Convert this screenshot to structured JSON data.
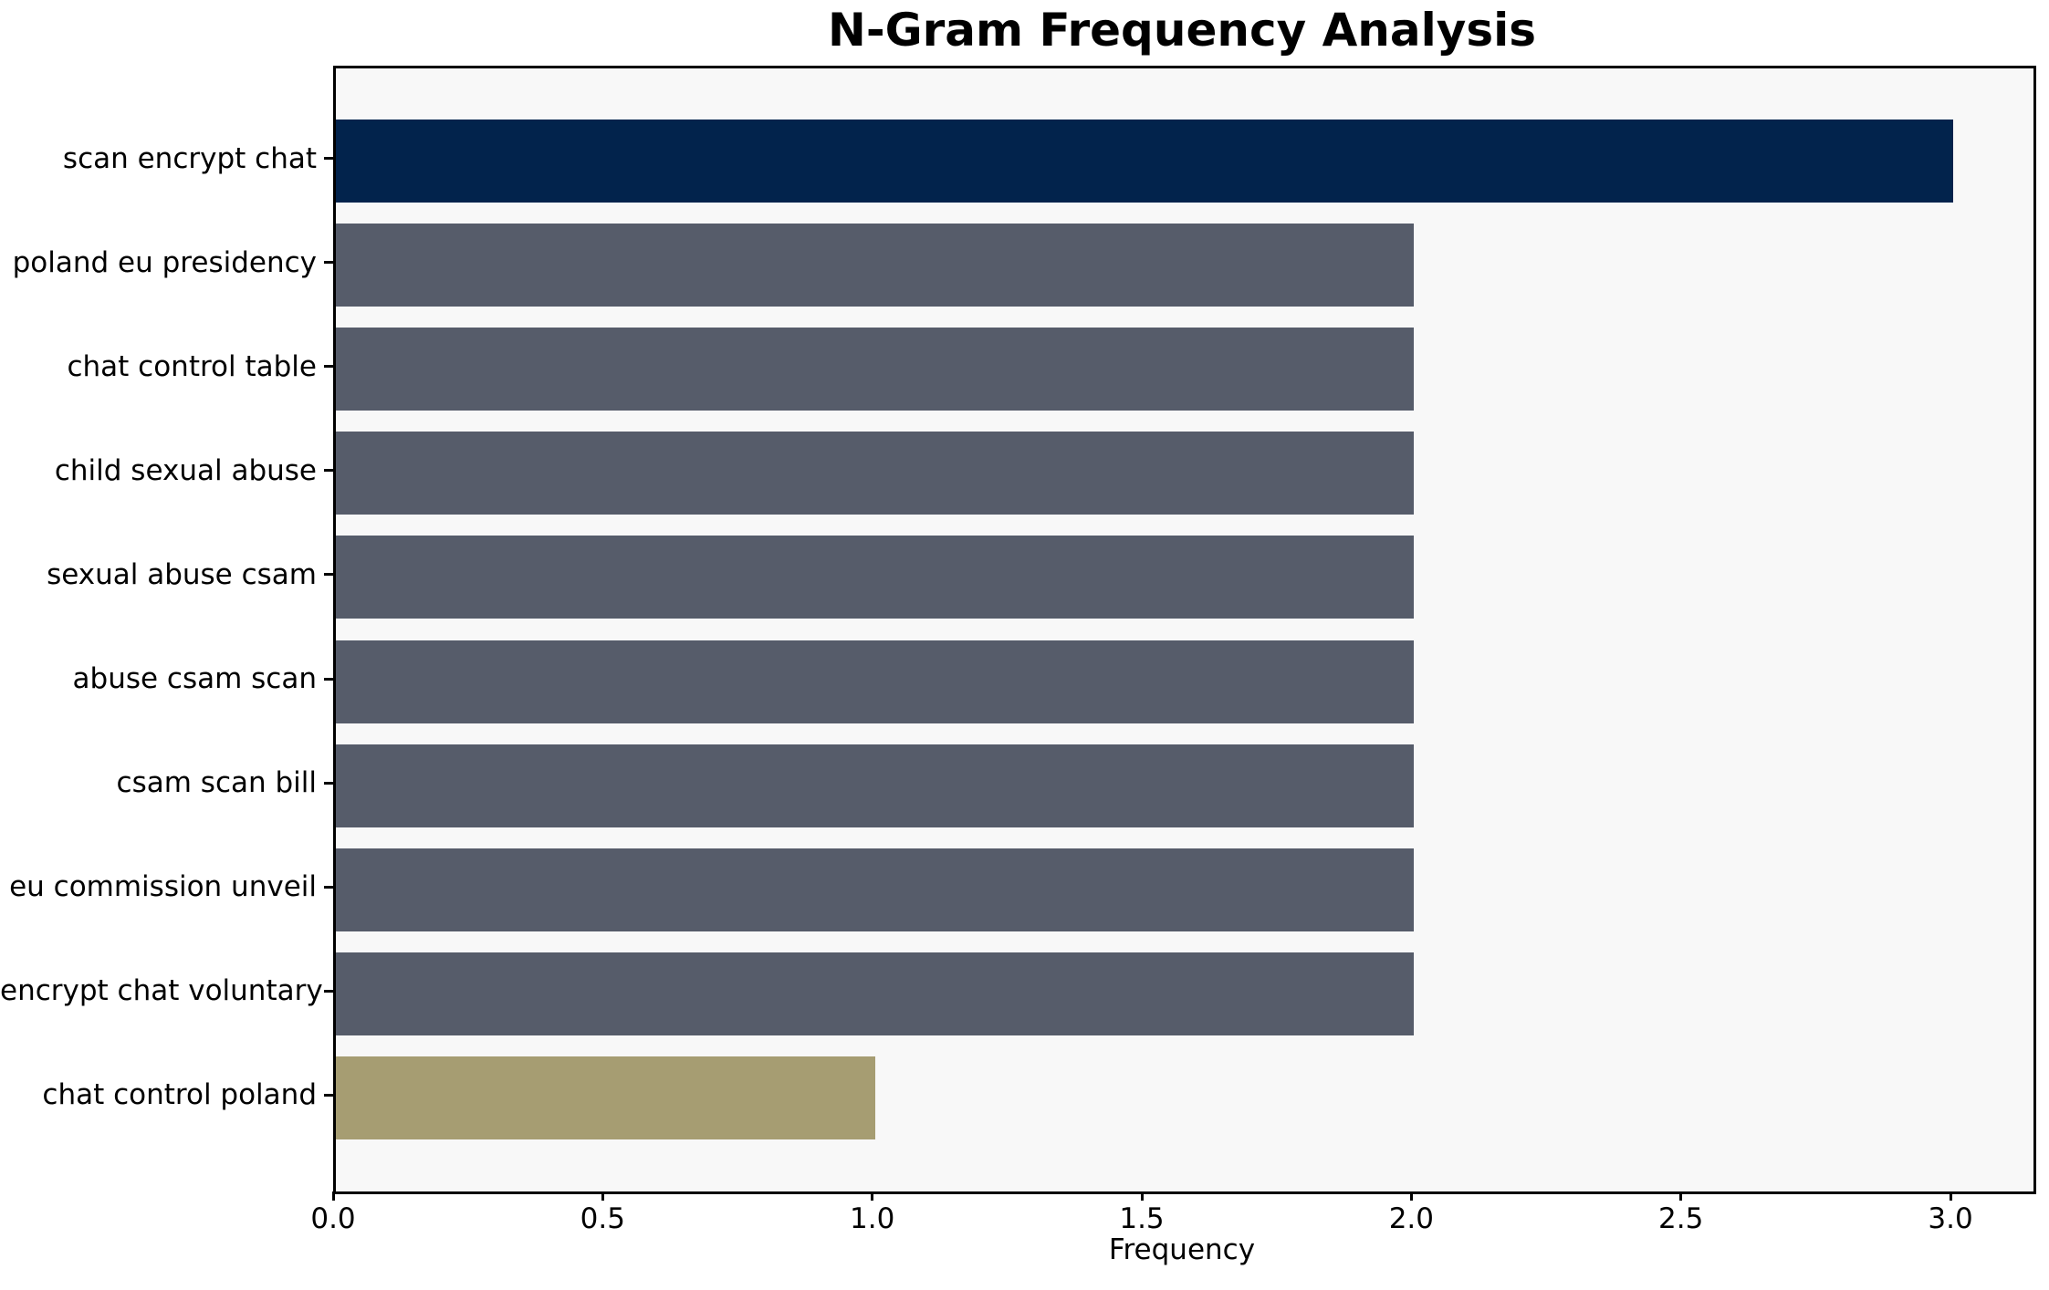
{
  "chart_data": {
    "type": "bar",
    "orientation": "horizontal",
    "title": "N-Gram Frequency Analysis",
    "xlabel": "Frequency",
    "ylabel": "",
    "categories": [
      "scan encrypt chat",
      "poland eu presidency",
      "chat control table",
      "child sexual abuse",
      "sexual abuse csam",
      "abuse csam scan",
      "csam scan bill",
      "eu commission unveil",
      "encrypt chat voluntary",
      "chat control poland"
    ],
    "values": [
      3,
      2,
      2,
      2,
      2,
      2,
      2,
      2,
      2,
      1
    ],
    "bar_colors": [
      "#02234C",
      "#565C6A",
      "#565C6A",
      "#565C6A",
      "#565C6A",
      "#565C6A",
      "#565C6A",
      "#565C6A",
      "#565C6A",
      "#A69D72"
    ],
    "xlim": [
      0,
      3.1489
    ],
    "xticks": [
      0.0,
      0.5,
      1.0,
      1.5,
      2.0,
      2.5,
      3.0
    ],
    "xtick_labels": [
      "0.0",
      "0.5",
      "1.0",
      "1.5",
      "2.0",
      "2.5",
      "3.0"
    ],
    "grid": false,
    "legend": null,
    "colors": {
      "highlight_bar": "#02234C",
      "default_bar": "#565C6A",
      "lowlight_bar": "#A69D72",
      "plot_background": "#F8F8F8",
      "figure_background": "#FFFFFF",
      "spine": "#000000",
      "text": "#000000"
    }
  }
}
